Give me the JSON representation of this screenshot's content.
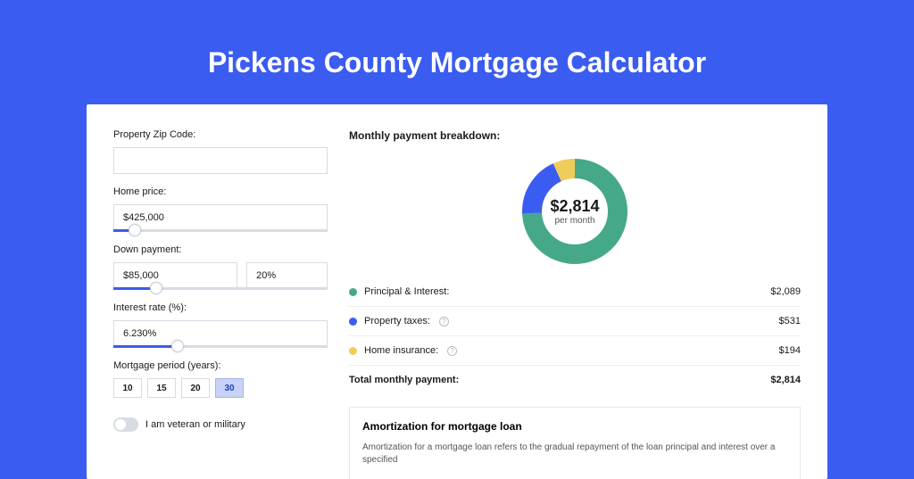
{
  "page": {
    "title": "Pickens County Mortgage Calculator",
    "background_color": "#3a5cf0",
    "card_background": "#ffffff"
  },
  "form": {
    "zip": {
      "label": "Property Zip Code:",
      "value": ""
    },
    "home_price": {
      "label": "Home price:",
      "value": "$425,000",
      "slider_pct": 10
    },
    "down_payment": {
      "label": "Down payment:",
      "value": "$85,000",
      "pct_value": "20%",
      "slider_pct": 20
    },
    "interest_rate": {
      "label": "Interest rate (%):",
      "value": "6.230%",
      "slider_pct": 30
    },
    "period": {
      "label": "Mortgage period (years):",
      "options": [
        "10",
        "15",
        "20",
        "30"
      ],
      "active": "30"
    },
    "veteran": {
      "label": "I am veteran or military",
      "checked": false
    }
  },
  "breakdown": {
    "title": "Monthly payment breakdown:",
    "donut": {
      "center_value": "$2,814",
      "center_sub": "per month",
      "stroke_width": 22,
      "segments": [
        {
          "key": "principal_interest",
          "label": "Principal & Interest:",
          "amount": "$2,089",
          "pct": 74.2,
          "color": "#45a989",
          "has_info": false
        },
        {
          "key": "property_taxes",
          "label": "Property taxes:",
          "amount": "$531",
          "pct": 18.9,
          "color": "#3a5cf0",
          "has_info": true
        },
        {
          "key": "home_insurance",
          "label": "Home insurance:",
          "amount": "$194",
          "pct": 6.9,
          "color": "#f0cc5c",
          "has_info": true
        }
      ]
    },
    "total": {
      "label": "Total monthly payment:",
      "amount": "$2,814"
    }
  },
  "amortization": {
    "title": "Amortization for mortgage loan",
    "text": "Amortization for a mortgage loan refers to the gradual repayment of the loan principal and interest over a specified"
  }
}
